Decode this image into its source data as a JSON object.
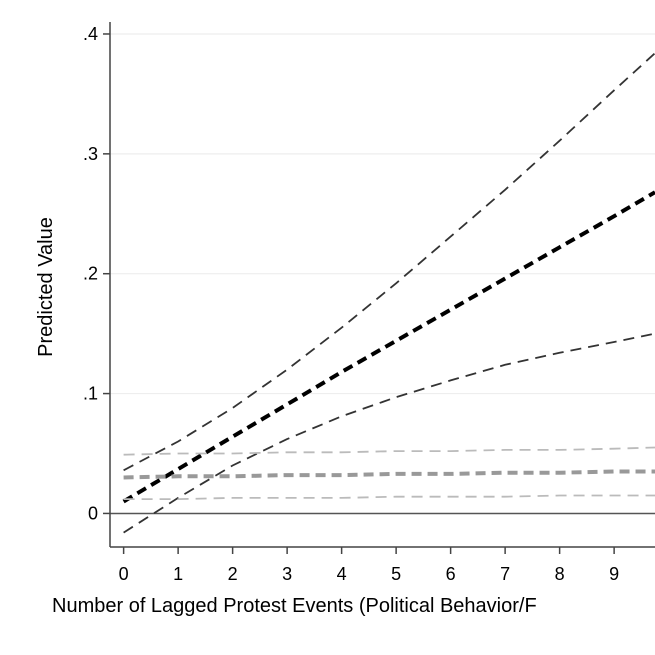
{
  "chart_data": {
    "type": "line",
    "xlabel": "Number of Lagged Protest Events (Political Behavior/F",
    "ylabel": "Predicted Value",
    "xlim": [
      -0.25,
      9.75
    ],
    "ylim": [
      -0.028,
      0.41
    ],
    "x_ticks": [
      0,
      1,
      2,
      3,
      4,
      5,
      6,
      7,
      8,
      9
    ],
    "x_tick_labels": [
      "0",
      "1",
      "2",
      "3",
      "4",
      "5",
      "6",
      "7",
      "8",
      "9"
    ],
    "y_ticks": [
      0,
      0.1,
      0.2,
      0.3,
      0.4
    ],
    "y_tick_labels": [
      "0",
      ".1",
      ".2",
      ".3",
      ".4"
    ],
    "grid": true,
    "reference_line_y": 0,
    "x": [
      0,
      1,
      2,
      3,
      4,
      5,
      6,
      7,
      8,
      9,
      9.75
    ],
    "series": [
      {
        "values": [
          0.01,
          0.037,
          0.064,
          0.091,
          0.118,
          0.144,
          0.17,
          0.196,
          0.222,
          0.248,
          0.268
        ],
        "color": "#000000",
        "style": "dashed-bold"
      },
      {
        "values": [
          0.036,
          0.06,
          0.088,
          0.12,
          0.155,
          0.192,
          0.231,
          0.27,
          0.311,
          0.353,
          0.384
        ],
        "color": "#333333",
        "style": "dashed"
      },
      {
        "values": [
          -0.016,
          0.013,
          0.04,
          0.062,
          0.081,
          0.097,
          0.111,
          0.124,
          0.134,
          0.143,
          0.15
        ],
        "color": "#333333",
        "style": "dashed"
      },
      {
        "values": [
          0.03,
          0.031,
          0.031,
          0.032,
          0.032,
          0.033,
          0.033,
          0.034,
          0.034,
          0.035,
          0.035
        ],
        "color": "#999999",
        "style": "dashed-bold"
      },
      {
        "values": [
          0.049,
          0.05,
          0.05,
          0.051,
          0.051,
          0.052,
          0.052,
          0.053,
          0.053,
          0.054,
          0.055
        ],
        "color": "#bbbbbb",
        "style": "dashed"
      },
      {
        "values": [
          0.012,
          0.012,
          0.013,
          0.013,
          0.013,
          0.014,
          0.014,
          0.014,
          0.015,
          0.015,
          0.015
        ],
        "color": "#bbbbbb",
        "style": "dashed"
      }
    ]
  }
}
